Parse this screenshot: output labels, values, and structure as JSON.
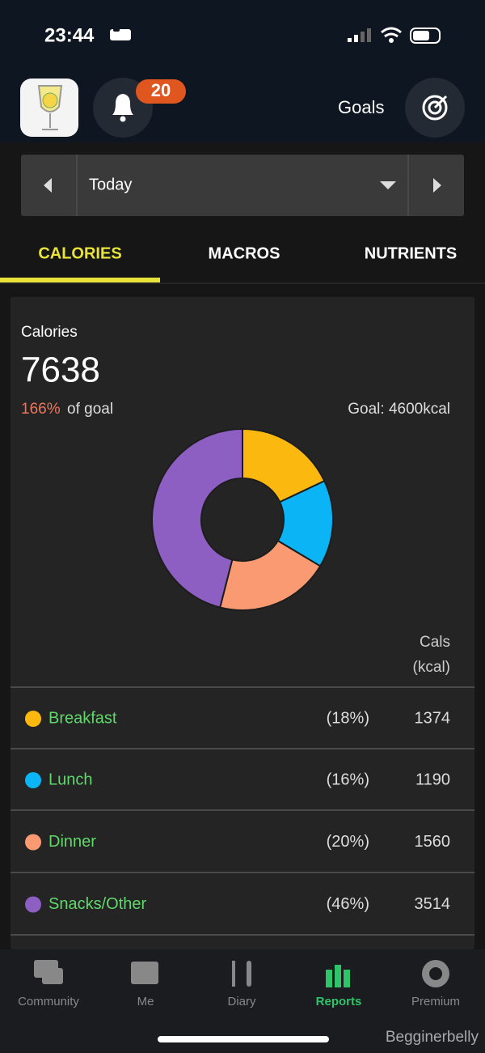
{
  "status_bar": {
    "time": "23:44"
  },
  "header": {
    "notification_count": "20",
    "goals": "Goals"
  },
  "date_selector": {
    "label": "Today"
  },
  "tabs": [
    "CALORIES",
    "MACROS",
    "NUTRIENTS"
  ],
  "summary": {
    "title": "Calories",
    "total": 7638,
    "percent_of_goal": "166%",
    "of_goal": "of goal",
    "goal": "Goal: 4600kcal"
  },
  "column_header": [
    "Cals",
    "(kcal)"
  ],
  "meals": [
    {
      "name": "Breakfast",
      "color": "#fbb80f",
      "percent": "(18%)",
      "calories": 1374
    },
    {
      "name": "Lunch",
      "color": "#0ab4f5",
      "percent": "(16%)",
      "calories": 1190
    },
    {
      "name": "Dinner",
      "color": "#f99a72",
      "percent": "(20%)",
      "calories": 1560
    },
    {
      "name": "Snacks/Other",
      "color": "#8e5fc2",
      "percent": "(46%)",
      "calories": 3514
    }
  ],
  "nav": [
    "Community",
    "Me",
    "Diary",
    "Reports",
    "Premium"
  ],
  "watermark": "Begginerbelly"
}
